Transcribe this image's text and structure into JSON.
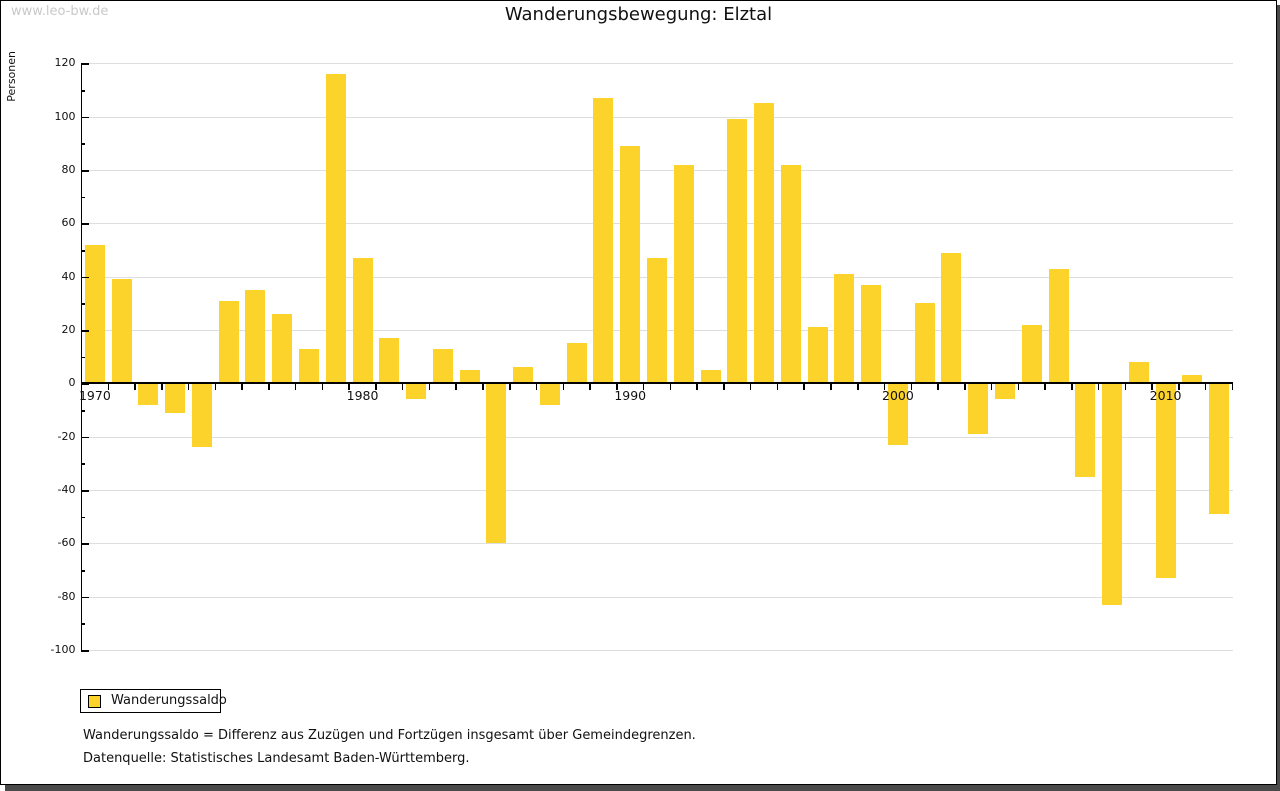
{
  "watermark": "www.leo-bw.de",
  "title": "Wanderungsbewegung: Elztal",
  "legend": {
    "label": "Wanderungssaldo"
  },
  "footnotes": [
    "Wanderungssaldo = Differenz aus Zuzügen und Fortzügen insgesamt über Gemeindegrenzen.",
    "Datenquelle: Statistisches Landesamt Baden-Württemberg."
  ],
  "colors": {
    "bar": "#fcd32b",
    "gridline": "#dedede",
    "axis": "#000000",
    "watermark": "#c9c9c9",
    "frame_shadow": "#4a4a4a"
  },
  "chart_data": {
    "type": "bar",
    "title": "Wanderungsbewegung: Elztal",
    "xlabel": "",
    "ylabel": "Personen",
    "x": [
      1970,
      1971,
      1972,
      1973,
      1974,
      1975,
      1976,
      1977,
      1978,
      1979,
      1980,
      1981,
      1982,
      1983,
      1984,
      1985,
      1986,
      1987,
      1988,
      1989,
      1990,
      1991,
      1992,
      1993,
      1994,
      1995,
      1996,
      1997,
      1998,
      1999,
      2000,
      2001,
      2002,
      2003,
      2004,
      2005,
      2006,
      2007,
      2008,
      2009,
      2010,
      2011,
      2012
    ],
    "series": [
      {
        "name": "Wanderungssaldo",
        "values": [
          52,
          39,
          -8,
          -11,
          -24,
          31,
          35,
          26,
          13,
          116,
          47,
          17,
          -6,
          13,
          5,
          -60,
          6,
          -8,
          15,
          107,
          89,
          47,
          82,
          5,
          99,
          105,
          82,
          21,
          41,
          37,
          -23,
          30,
          49,
          -19,
          -6,
          22,
          43,
          -35,
          -83,
          8,
          -73,
          3,
          -49
        ]
      }
    ],
    "ylim": [
      -100,
      120
    ],
    "ytick_step": 20,
    "yminor_step": 10,
    "xtick_labels": [
      "1970",
      "1980",
      "1990",
      "2000",
      "2010"
    ],
    "grid": "horizontal",
    "legend_position": "bottom-left",
    "bar_color": "#fcd32b"
  }
}
